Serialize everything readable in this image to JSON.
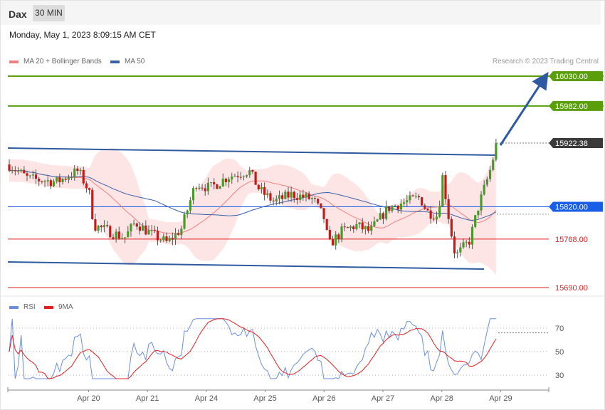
{
  "header": {
    "symbol": "Dax",
    "timeframe": "30 MIN",
    "datetime": "Monday, May 1, 2023 8:09:15 AM CET"
  },
  "legend": {
    "ma20_label": "MA 20 + Bollinger Bands",
    "ma50_label": "MA 50",
    "credit": "Research © 2023 Trading Central"
  },
  "rsi_legend": {
    "rsi_label": "RSI",
    "ma9_label": "9MA"
  },
  "colors": {
    "green_level": "#5a9e0c",
    "blue_level": "#1a5ee8",
    "red_level": "#e21b1b",
    "price_tag": "#3a3a3a",
    "candle_up": "#4a9a2a",
    "candle_down": "#c61a1a",
    "trend_channel": "#2d5aa0",
    "ma20": "#f08080",
    "ma50": "#3b5fa8",
    "bollinger_fill": "#fde0e0",
    "rsi_line": "#6a8ede",
    "rsi_ma": "#e02020"
  },
  "chart_data": [
    {
      "type": "candlestick",
      "x_labels": [
        "Apr 20",
        "Apr 21",
        "Apr 24",
        "Apr 25",
        "Apr 26",
        "Apr 27",
        "Apr 28",
        "Apr 29"
      ],
      "price_levels": [
        {
          "label": "16030.00",
          "value": 16030.0,
          "role": "resistance"
        },
        {
          "label": "15982.00",
          "value": 15982.0,
          "role": "resistance"
        },
        {
          "label": "15922.38",
          "value": 15922.38,
          "role": "last-price"
        },
        {
          "label": "15820.00",
          "value": 15820.0,
          "role": "pivot"
        },
        {
          "label": "15768.00",
          "value": 15768.0,
          "role": "support"
        },
        {
          "label": "15690.00",
          "value": 15690.0,
          "role": "support"
        }
      ],
      "ylim": [
        15690,
        16030
      ],
      "last_price": 15922.38,
      "indicators": [
        "MA 20 + Bollinger Bands",
        "MA 50"
      ],
      "target_arrow": {
        "from": 15922.38,
        "to": 16030.0
      }
    },
    {
      "type": "line",
      "series": [
        {
          "name": "RSI"
        },
        {
          "name": "9MA"
        }
      ],
      "y_ticks": [
        "70",
        "50",
        "30"
      ],
      "ylim": [
        20,
        80
      ]
    }
  ]
}
